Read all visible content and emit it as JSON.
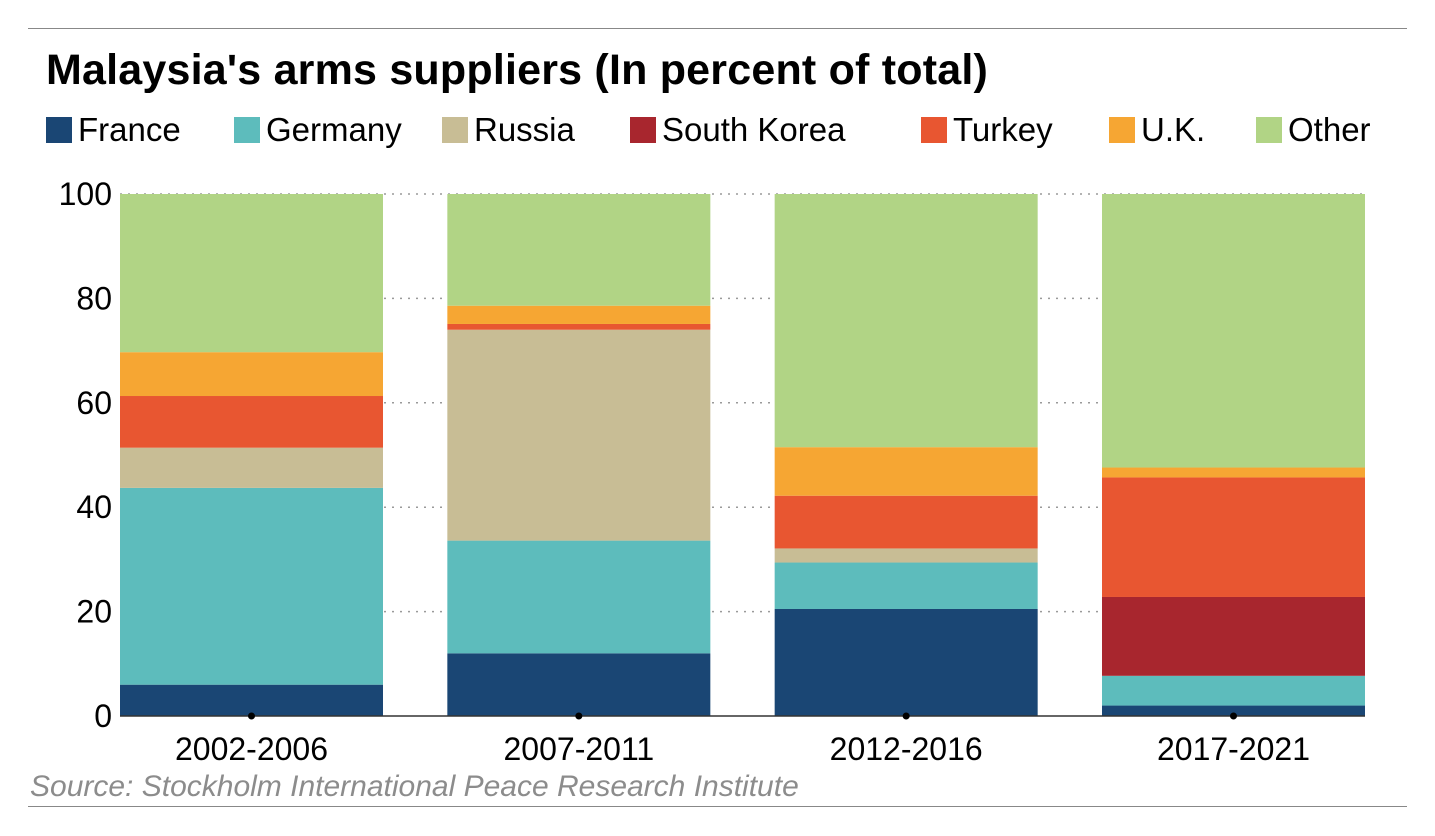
{
  "chart_data": {
    "type": "bar",
    "stacked": true,
    "title": "Malaysia's arms suppliers (In percent of total)",
    "source": "Source: Stockholm International Peace Research Institute",
    "categories": [
      "2002-2006",
      "2007-2011",
      "2012-2016",
      "2017-2021"
    ],
    "ylim": [
      0,
      100
    ],
    "yticks": [
      0,
      20,
      40,
      60,
      80,
      100
    ],
    "grid": true,
    "legend_position": "top",
    "series": [
      {
        "name": "France",
        "color": "#1a4674",
        "values": [
          6,
          12,
          20.5,
          2
        ]
      },
      {
        "name": "Germany",
        "color": "#5dbcbc",
        "values": [
          37.7,
          21.6,
          8.9,
          5.7
        ]
      },
      {
        "name": "Russia",
        "color": "#c8bd95",
        "values": [
          7.7,
          40.4,
          2.7,
          0
        ]
      },
      {
        "name": "South Korea",
        "color": "#a8262e",
        "values": [
          0,
          0,
          0,
          15.1
        ]
      },
      {
        "name": "Turkey",
        "color": "#e85631",
        "values": [
          9.9,
          1.1,
          10.1,
          22.9
        ]
      },
      {
        "name": "U.K.",
        "color": "#f6a633",
        "values": [
          8.4,
          3.5,
          9.3,
          1.9
        ]
      },
      {
        "name": "Other",
        "color": "#b1d485",
        "values": [
          30.3,
          21.4,
          48.5,
          52.4
        ]
      }
    ]
  }
}
